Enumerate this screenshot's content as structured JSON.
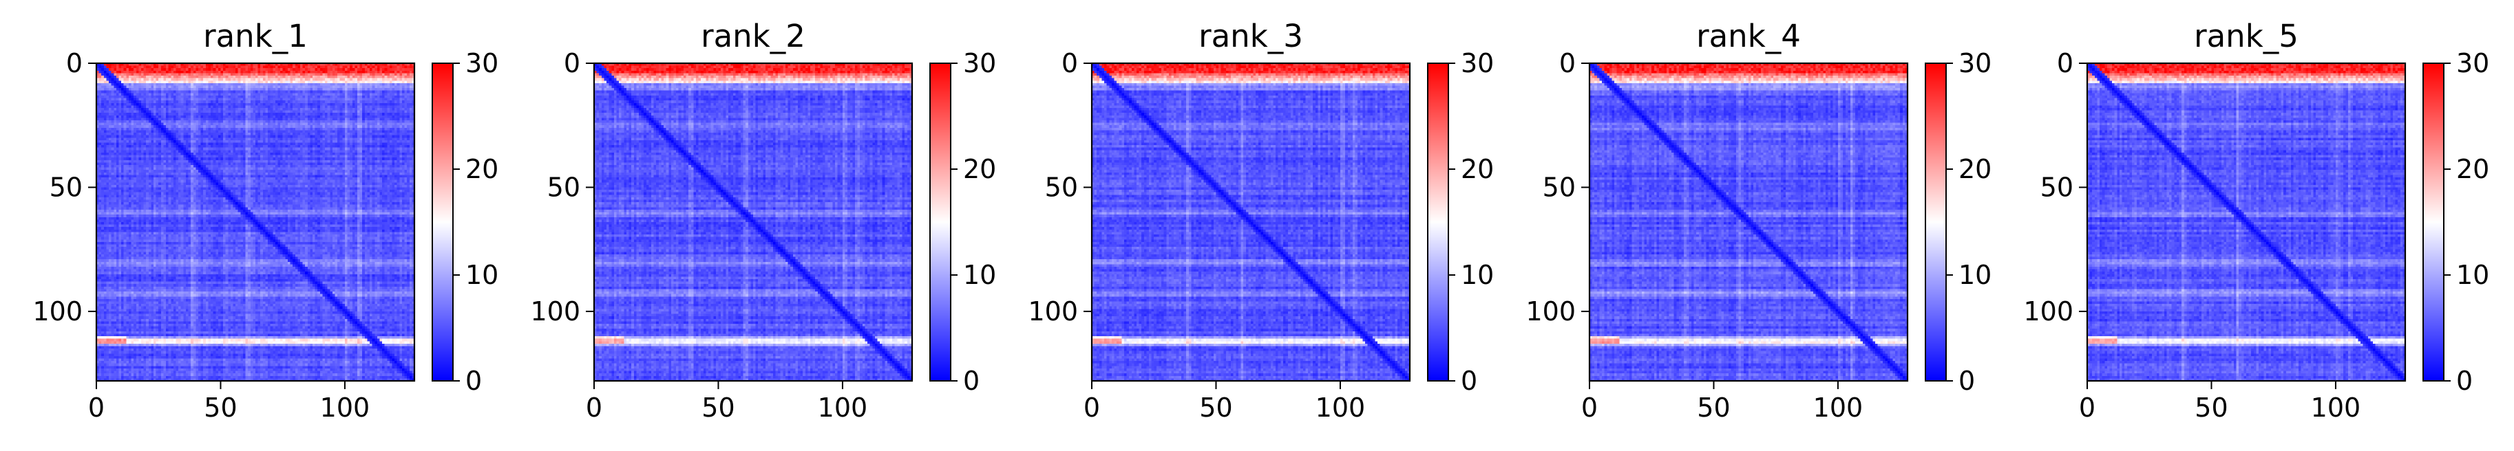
{
  "chart_data": {
    "type": "heatmap",
    "colormap": "bwr",
    "colormap_colors": {
      "low": "#0000ff",
      "mid": "#ffffff",
      "high": "#ff0000"
    },
    "value_range": [
      0,
      30
    ],
    "matrix_size": [
      128,
      128
    ],
    "x_ticks": [
      0,
      50,
      100
    ],
    "y_ticks": [
      0,
      50,
      100
    ],
    "x_tick_labels": [
      "0",
      "50",
      "100"
    ],
    "y_tick_labels": [
      "0",
      "50",
      "100"
    ],
    "colorbar_ticks": [
      0,
      10,
      20,
      30
    ],
    "colorbar_tick_labels": [
      "0",
      "10",
      "20",
      "30"
    ],
    "panels": [
      {
        "title": "rank_1"
      },
      {
        "title": "rank_2"
      },
      {
        "title": "rank_3"
      },
      {
        "title": "rank_4"
      },
      {
        "title": "rank_5"
      }
    ],
    "features": {
      "typical_value": 3,
      "diagonal_value": 0,
      "top_rows_value": 28,
      "top_rows_extent": [
        0,
        7
      ],
      "bright_band_row": 111,
      "bright_band_value": 15,
      "faint_band_rows": [
        80,
        92,
        60,
        25
      ]
    }
  }
}
